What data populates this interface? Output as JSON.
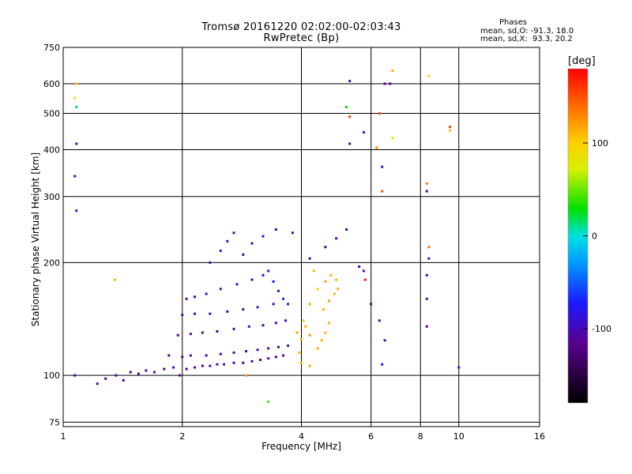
{
  "chart_data": {
    "type": "scatter",
    "title": "Tromsø 20161220 02:02:00-02:03:43",
    "subtitle": "RwPretec (Bp)",
    "xlabel": "Frequency [MHz]",
    "ylabel": "Stationary phase Virtual Height [km]",
    "x_scale": "log",
    "y_scale": "log",
    "xlim": [
      1,
      16
    ],
    "ylim": [
      73,
      750
    ],
    "x_ticks": [
      1,
      2,
      4,
      6,
      8,
      10,
      16
    ],
    "y_ticks": [
      75,
      100,
      200,
      300,
      400,
      500,
      600,
      750
    ],
    "grid": true,
    "legend": {
      "title": "Phases",
      "lines": [
        "mean, sd,O: -91.3, 18.0",
        "mean, sd,X:  93.3, 20.2"
      ]
    },
    "colorbar": {
      "label": "[deg]",
      "range": [
        -180,
        180
      ],
      "ticks": [
        100,
        0,
        -100
      ]
    },
    "series": [
      {
        "points": [
          [
            1.07,
            100,
            -100
          ],
          [
            1.22,
            95,
            -110
          ],
          [
            1.28,
            98,
            -105
          ],
          [
            1.36,
            100,
            -110
          ],
          [
            1.42,
            97,
            -115
          ],
          [
            1.48,
            102,
            -105
          ],
          [
            1.55,
            101,
            -110
          ],
          [
            1.62,
            103,
            -100
          ],
          [
            1.7,
            102,
            -105
          ],
          [
            1.8,
            104,
            -110
          ],
          [
            1.9,
            105,
            -100
          ],
          [
            1.97,
            100,
            -115
          ],
          [
            2.05,
            104,
            -105
          ],
          [
            2.15,
            105,
            -110
          ],
          [
            2.25,
            106,
            -100
          ],
          [
            2.35,
            106,
            -105
          ],
          [
            2.45,
            107,
            -110
          ],
          [
            2.55,
            107,
            -100
          ],
          [
            2.7,
            108,
            -105
          ],
          [
            2.85,
            108,
            -110
          ],
          [
            3.0,
            109,
            -100
          ],
          [
            3.15,
            110,
            -105
          ],
          [
            3.3,
            111,
            -110
          ],
          [
            3.45,
            112,
            -105
          ],
          [
            3.6,
            113,
            -110
          ],
          [
            1.85,
            113,
            -105
          ],
          [
            2.0,
            112,
            -100
          ],
          [
            2.1,
            113,
            -110
          ],
          [
            2.3,
            113,
            -105
          ],
          [
            2.5,
            114,
            -100
          ],
          [
            2.7,
            115,
            -110
          ],
          [
            2.9,
            116,
            -105
          ],
          [
            3.1,
            117,
            -100
          ],
          [
            3.3,
            118,
            -110
          ],
          [
            3.5,
            119,
            -105
          ],
          [
            3.7,
            120,
            -100
          ],
          [
            1.95,
            128,
            -110
          ],
          [
            2.1,
            129,
            -100
          ],
          [
            2.25,
            130,
            -105
          ],
          [
            2.45,
            131,
            -110
          ],
          [
            2.7,
            133,
            -100
          ],
          [
            2.95,
            135,
            -105
          ],
          [
            3.2,
            136,
            -110
          ],
          [
            3.45,
            138,
            -100
          ],
          [
            3.65,
            140,
            -105
          ],
          [
            2.0,
            145,
            -105
          ],
          [
            2.15,
            146,
            -110
          ],
          [
            2.35,
            146,
            -100
          ],
          [
            2.6,
            148,
            -105
          ],
          [
            2.85,
            150,
            -110
          ],
          [
            3.1,
            152,
            -100
          ],
          [
            3.4,
            155,
            -105
          ],
          [
            2.05,
            160,
            -100
          ],
          [
            2.15,
            162,
            -110
          ],
          [
            2.3,
            165,
            -105
          ],
          [
            2.5,
            170,
            -110
          ],
          [
            2.75,
            175,
            -100
          ],
          [
            3.0,
            180,
            -105
          ],
          [
            3.2,
            185,
            -80
          ],
          [
            3.3,
            190,
            -80
          ],
          [
            3.4,
            178,
            -75
          ],
          [
            3.5,
            168,
            -80
          ],
          [
            3.6,
            160,
            -70
          ],
          [
            3.7,
            155,
            -75
          ],
          [
            2.35,
            200,
            -110
          ],
          [
            2.5,
            215,
            -100
          ],
          [
            2.6,
            228,
            -105
          ],
          [
            2.7,
            240,
            -100
          ],
          [
            2.85,
            210,
            -110
          ],
          [
            3.0,
            225,
            -105
          ],
          [
            3.2,
            235,
            -95
          ],
          [
            3.45,
            245,
            -100
          ],
          [
            3.8,
            240,
            -90
          ],
          [
            4.2,
            205,
            -100
          ],
          [
            4.6,
            220,
            -110
          ],
          [
            4.9,
            232,
            -105
          ],
          [
            5.2,
            245,
            -100
          ],
          [
            5.6,
            195,
            -110
          ],
          [
            5.75,
            190,
            -105
          ],
          [
            3.9,
            130,
            120
          ],
          [
            4.0,
            125,
            110
          ],
          [
            4.1,
            135,
            115
          ],
          [
            4.2,
            128,
            120
          ],
          [
            4.05,
            140,
            105
          ],
          [
            3.95,
            115,
            110
          ],
          [
            4.0,
            108,
            112
          ],
          [
            4.2,
            106,
            115
          ],
          [
            4.4,
            118,
            118
          ],
          [
            4.5,
            124,
            110
          ],
          [
            4.6,
            130,
            112
          ],
          [
            4.7,
            138,
            115
          ],
          [
            4.55,
            150,
            110
          ],
          [
            4.7,
            158,
            118
          ],
          [
            4.85,
            165,
            112
          ],
          [
            4.95,
            170,
            115
          ],
          [
            4.6,
            178,
            120
          ],
          [
            4.75,
            185,
            110
          ],
          [
            4.9,
            180,
            113
          ],
          [
            4.3,
            190,
            112
          ],
          [
            4.4,
            170,
            100
          ],
          [
            4.2,
            155,
            115
          ],
          [
            1.08,
            600,
            110
          ],
          [
            1.07,
            550,
            95
          ],
          [
            1.08,
            520,
            20
          ],
          [
            1.08,
            415,
            -105
          ],
          [
            1.07,
            340,
            -95
          ],
          [
            1.08,
            275,
            -85
          ],
          [
            5.3,
            610,
            -110
          ],
          [
            5.2,
            520,
            30
          ],
          [
            5.3,
            490,
            160
          ],
          [
            5.3,
            415,
            -110
          ],
          [
            5.75,
            445,
            -90
          ],
          [
            6.3,
            500,
            150
          ],
          [
            6.5,
            600,
            -120
          ],
          [
            6.7,
            600,
            -125
          ],
          [
            6.8,
            430,
            70
          ],
          [
            6.4,
            360,
            -100
          ],
          [
            6.4,
            310,
            150
          ],
          [
            6.2,
            405,
            130
          ],
          [
            8.3,
            325,
            130
          ],
          [
            8.3,
            310,
            -110
          ],
          [
            8.4,
            220,
            140
          ],
          [
            8.4,
            205,
            -90
          ],
          [
            8.3,
            185,
            -100
          ],
          [
            8.3,
            160,
            -100
          ],
          [
            8.3,
            135,
            -120
          ],
          [
            9.5,
            460,
            160
          ],
          [
            9.5,
            450,
            110
          ],
          [
            8.4,
            630,
            100
          ],
          [
            6.8,
            650,
            115
          ],
          [
            5.8,
            180,
            170
          ],
          [
            6.0,
            155,
            -110
          ],
          [
            6.3,
            140,
            -100
          ],
          [
            6.5,
            124,
            -95
          ],
          [
            6.4,
            107,
            -80
          ],
          [
            10.0,
            105,
            -70
          ],
          [
            1.35,
            180,
            110
          ],
          [
            3.3,
            85,
            40
          ],
          [
            2.9,
            100,
            120
          ]
        ]
      }
    ]
  }
}
